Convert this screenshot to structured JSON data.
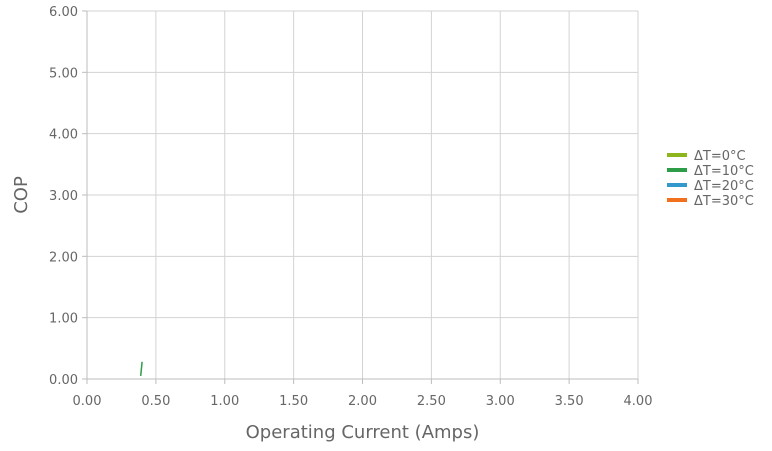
{
  "chart_data": {
    "type": "line",
    "title": "",
    "xlabel": "Operating Current (Amps)",
    "ylabel": "COP",
    "xlim": [
      0,
      4
    ],
    "ylim": [
      0,
      6
    ],
    "x_ticks": [
      "0.00",
      "0.50",
      "1.00",
      "1.50",
      "2.00",
      "2.50",
      "3.00",
      "3.50",
      "4.00"
    ],
    "y_ticks": [
      "0.00",
      "1.00",
      "2.00",
      "3.00",
      "4.00",
      "5.00",
      "6.00"
    ],
    "grid": true,
    "legend_position": "right",
    "series": [
      {
        "name": "ΔT=0°C",
        "color": "#8db51c",
        "points": []
      },
      {
        "name": "ΔT=10°C",
        "color": "#2e9d48",
        "points": [
          [
            0.39,
            0.05
          ],
          [
            0.4,
            0.28
          ]
        ]
      },
      {
        "name": "ΔT=20°C",
        "color": "#3399cc",
        "points": []
      },
      {
        "name": "ΔT=30°C",
        "color": "#f0701e",
        "points": []
      }
    ]
  }
}
